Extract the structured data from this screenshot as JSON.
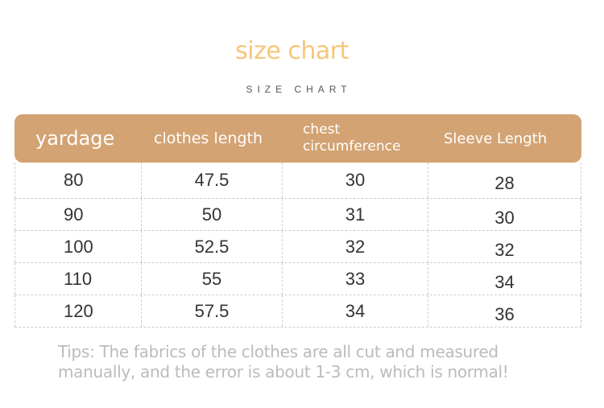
{
  "title": "size chart",
  "subtitle": "SIZE CHART",
  "table": {
    "headers": [
      "yardage",
      "clothes length",
      "chest circumference",
      "Sleeve Length"
    ],
    "rows": [
      [
        "80",
        "47.5",
        "30",
        "28"
      ],
      [
        "90",
        "50",
        "31",
        "30"
      ],
      [
        "100",
        "52.5",
        "32",
        "32"
      ],
      [
        "110",
        "55",
        "33",
        "34"
      ],
      [
        "120",
        "57.5",
        "34",
        "36"
      ]
    ]
  },
  "tips": [
    "Tips: The fabrics of the clothes are all cut and measured",
    "manually, and the error is about 1-3 cm, which is normal!"
  ],
  "colors": {
    "header_bg": "#d3a373",
    "title": "#f6c67a",
    "tips": "#bbbbbb"
  }
}
